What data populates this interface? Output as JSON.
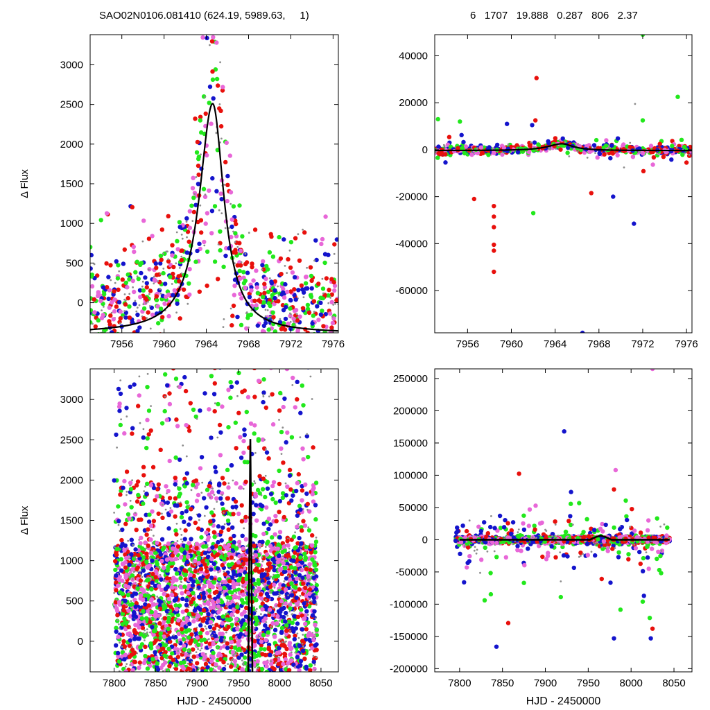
{
  "header": {
    "left_title": "SAO02N0106.081410 (624.19, 5989.63,     1)",
    "right_stats": "6   1707   19.888   0.287   806   2.37"
  },
  "colors": {
    "red": "#e8100c",
    "green": "#22e81c",
    "blue": "#1414cc",
    "violet": "#e867d8",
    "gray": "#8c8c8c",
    "model": "#000000"
  },
  "chart_data": [
    {
      "id": "top-left",
      "type": "scatter",
      "ylabel": "Δ Flux",
      "xlabel": "",
      "xlim": [
        7953,
        7976.5
      ],
      "ylim": [
        -380,
        3380
      ],
      "xticks": [
        "7956",
        "7960",
        "7964",
        "7968",
        "7972",
        "7976"
      ],
      "yticks": [
        "0",
        "500",
        "1000",
        "1500",
        "2000",
        "2500",
        "3000"
      ],
      "model": {
        "kind": "peak",
        "peak_x": 7964.6,
        "peak_y": 2510,
        "baseline": -390,
        "width_left": 1.55,
        "width_right": 1.3
      },
      "scatter": {
        "n": 900,
        "seed": 11,
        "base_low": -380,
        "base_high": 1100,
        "spread": 1.0
      },
      "grid": false
    },
    {
      "id": "top-right",
      "type": "scatter",
      "ylabel": "",
      "xlabel": "",
      "xlim": [
        7953,
        7976.5
      ],
      "ylim": [
        -78000,
        49000
      ],
      "xticks": [
        "7956",
        "7960",
        "7964",
        "7968",
        "7972",
        "7976"
      ],
      "yticks": [
        "-60000",
        "-40000",
        "-20000",
        "0",
        "20000",
        "40000"
      ],
      "model": {
        "kind": "peak",
        "peak_x": 7964.6,
        "peak_y": 2510,
        "baseline": -390,
        "width_left": 1.55,
        "width_right": 1.3
      },
      "outliers": [
        [
          7958.4,
          -52000,
          "red"
        ],
        [
          7958.4,
          -43000,
          "red"
        ],
        [
          7958.4,
          -40500,
          "red"
        ],
        [
          7958.4,
          -33000,
          "red"
        ],
        [
          7958.4,
          -28500,
          "red"
        ],
        [
          7958.4,
          -24000,
          "red"
        ],
        [
          7956.6,
          -21000,
          "red"
        ],
        [
          7962.3,
          30500,
          "red"
        ],
        [
          7962.2,
          12500,
          "red"
        ],
        [
          7967.3,
          -18500,
          "red"
        ],
        [
          7971.2,
          -31500,
          "blue"
        ],
        [
          7969.3,
          -20000,
          "blue"
        ],
        [
          7966.5,
          -78000,
          "blue"
        ],
        [
          7962.0,
          -27000,
          "green"
        ],
        [
          7955.3,
          12000,
          "green"
        ],
        [
          7953.3,
          13000,
          "green"
        ],
        [
          7972.0,
          49000,
          "green"
        ],
        [
          7975.2,
          22500,
          "green"
        ],
        [
          7972.0,
          12500,
          "green"
        ],
        [
          7959.6,
          11000,
          "blue"
        ],
        [
          7971.3,
          19500,
          "gray"
        ],
        [
          7961.9,
          10500,
          "blue"
        ]
      ],
      "scatter": {
        "n": 700,
        "seed": 23,
        "band": 2600
      },
      "grid": false
    },
    {
      "id": "bottom-left",
      "type": "scatter",
      "ylabel": "Δ Flux",
      "xlabel": "HJD - 2450000",
      "xlim": [
        7771,
        8071
      ],
      "ylim": [
        -380,
        3380
      ],
      "xticks": [
        "7800",
        "7850",
        "7900",
        "7950",
        "8000",
        "8050"
      ],
      "yticks": [
        "0",
        "500",
        "1000",
        "1500",
        "2000",
        "2500",
        "3000"
      ],
      "model": {
        "kind": "spike",
        "peak_x": 7964.6,
        "peak_y": 2510,
        "baseline": -390
      },
      "scatter": {
        "n": 3400,
        "seed": 37,
        "x_from": 7800,
        "x_to": 8045
      },
      "grid": false
    },
    {
      "id": "bottom-right",
      "type": "scatter",
      "ylabel": "",
      "xlabel": "HJD - 2450000",
      "xlim": [
        7771,
        8071
      ],
      "ylim": [
        -205000,
        265000
      ],
      "xticks": [
        "7800",
        "7850",
        "7900",
        "7950",
        "8000",
        "8050"
      ],
      "yticks": [
        "-200000",
        "-150000",
        "-100000",
        "-50000",
        "0",
        "50000",
        "100000",
        "150000",
        "200000",
        "250000"
      ],
      "model": {
        "kind": "flat",
        "bump_x": 7964.6,
        "bump_y": 2510
      },
      "scatter": {
        "n": 1900,
        "seed": 53,
        "x_from": 7795,
        "x_to": 8045
      },
      "grid": false
    }
  ]
}
